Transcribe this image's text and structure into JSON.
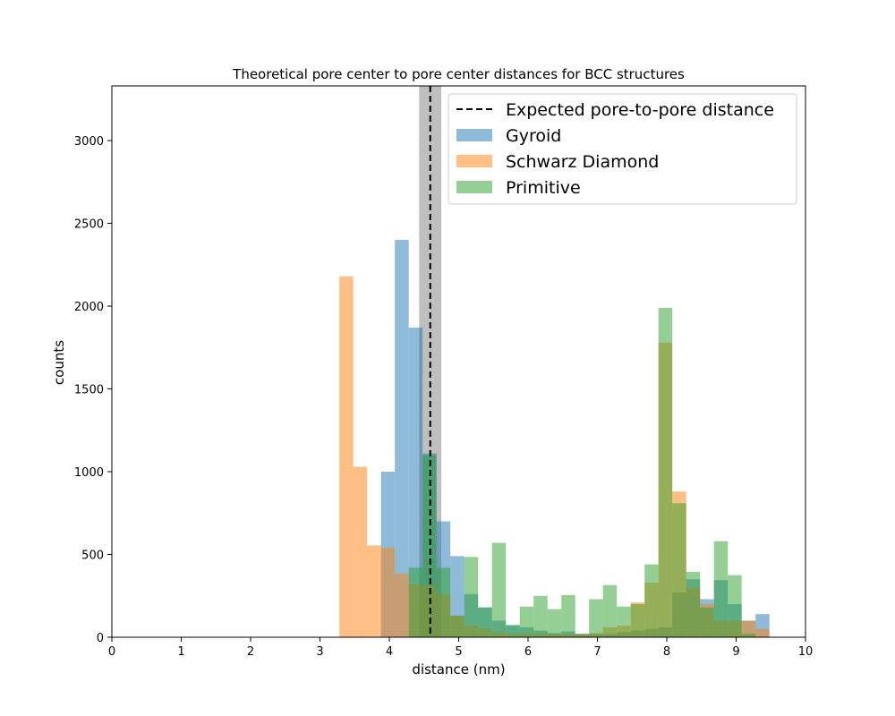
{
  "chart_data": {
    "type": "bar",
    "title": "Theoretical pore center to pore center distances for BCC structures",
    "xlabel": "distance (nm)",
    "ylabel": "counts",
    "xlim": [
      0,
      10
    ],
    "ylim": [
      0,
      3330
    ],
    "xticks": [
      "0",
      "1",
      "2",
      "3",
      "4",
      "5",
      "6",
      "7",
      "8",
      "9",
      "10"
    ],
    "yticks": [
      "0",
      "500",
      "1000",
      "1500",
      "2000",
      "2500",
      "3000"
    ],
    "grid": false,
    "legend_position": "upper right",
    "reference": {
      "label": "Expected pore-to-pore distance",
      "x": 4.59,
      "band": [
        4.43,
        4.75
      ],
      "line_color": "#000000",
      "band_color": "#808080"
    },
    "series": [
      {
        "name": "Gyroid",
        "color": "#1f77b4",
        "bins": [
          [
            3.88,
            4.08,
            1000
          ],
          [
            4.08,
            4.28,
            2400
          ],
          [
            4.28,
            4.48,
            1870
          ],
          [
            4.48,
            4.68,
            1110
          ],
          [
            4.68,
            4.88,
            700
          ],
          [
            4.88,
            5.08,
            490
          ],
          [
            5.08,
            5.28,
            260
          ],
          [
            5.28,
            5.48,
            180
          ],
          [
            5.48,
            5.68,
            100
          ],
          [
            5.68,
            5.88,
            70
          ],
          [
            5.88,
            6.08,
            60
          ],
          [
            6.08,
            6.28,
            40
          ],
          [
            6.28,
            6.48,
            25
          ],
          [
            6.48,
            6.68,
            35
          ],
          [
            6.68,
            6.88,
            20
          ],
          [
            6.88,
            7.08,
            20
          ],
          [
            7.08,
            7.28,
            20
          ],
          [
            7.28,
            7.48,
            30
          ],
          [
            7.48,
            7.68,
            40
          ],
          [
            7.68,
            7.88,
            50
          ],
          [
            7.88,
            8.08,
            60
          ],
          [
            8.08,
            8.28,
            270
          ],
          [
            8.28,
            8.48,
            350
          ],
          [
            8.48,
            8.68,
            230
          ],
          [
            8.68,
            8.88,
            345
          ],
          [
            8.88,
            9.08,
            200
          ],
          [
            9.08,
            9.28,
            100
          ],
          [
            9.28,
            9.48,
            140
          ]
        ]
      },
      {
        "name": "Schwarz Diamond",
        "color": "#ff7f0e",
        "bins": [
          [
            3.28,
            3.48,
            2180
          ],
          [
            3.48,
            3.68,
            1030
          ],
          [
            3.68,
            3.88,
            555
          ],
          [
            3.88,
            4.08,
            540
          ],
          [
            4.08,
            4.28,
            385
          ],
          [
            4.28,
            4.48,
            320
          ],
          [
            4.48,
            4.68,
            310
          ],
          [
            4.68,
            4.88,
            260
          ],
          [
            4.88,
            5.08,
            130
          ],
          [
            5.08,
            5.28,
            70
          ],
          [
            5.28,
            5.48,
            50
          ],
          [
            5.48,
            5.68,
            30
          ],
          [
            5.68,
            5.88,
            20
          ],
          [
            5.88,
            6.08,
            20
          ],
          [
            6.08,
            6.28,
            20
          ],
          [
            6.28,
            6.48,
            20
          ],
          [
            6.48,
            6.68,
            20
          ],
          [
            6.68,
            6.88,
            20
          ],
          [
            6.88,
            7.08,
            25
          ],
          [
            7.08,
            7.28,
            60
          ],
          [
            7.28,
            7.48,
            70
          ],
          [
            7.48,
            7.68,
            210
          ],
          [
            7.68,
            7.88,
            330
          ],
          [
            7.88,
            8.08,
            1780
          ],
          [
            8.08,
            8.28,
            880
          ],
          [
            8.28,
            8.48,
            300
          ],
          [
            8.48,
            8.68,
            200
          ],
          [
            8.68,
            8.88,
            100
          ],
          [
            8.88,
            9.08,
            100
          ],
          [
            9.08,
            9.28,
            100
          ],
          [
            9.28,
            9.48,
            50
          ]
        ]
      },
      {
        "name": "Primitive",
        "color": "#2ca02c",
        "bins": [
          [
            4.28,
            4.48,
            420
          ],
          [
            4.48,
            4.68,
            1100
          ],
          [
            4.68,
            4.88,
            420
          ],
          [
            4.88,
            5.08,
            130
          ],
          [
            5.08,
            5.28,
            485
          ],
          [
            5.28,
            5.48,
            180
          ],
          [
            5.48,
            5.68,
            570
          ],
          [
            5.68,
            5.88,
            75
          ],
          [
            5.88,
            6.08,
            185
          ],
          [
            6.08,
            6.28,
            250
          ],
          [
            6.28,
            6.48,
            170
          ],
          [
            6.48,
            6.68,
            255
          ],
          [
            6.68,
            6.88,
            20
          ],
          [
            6.88,
            7.08,
            230
          ],
          [
            7.08,
            7.28,
            315
          ],
          [
            7.28,
            7.48,
            185
          ],
          [
            7.48,
            7.68,
            200
          ],
          [
            7.68,
            7.88,
            440
          ],
          [
            7.88,
            8.08,
            1990
          ],
          [
            8.08,
            8.28,
            810
          ],
          [
            8.28,
            8.48,
            395
          ],
          [
            8.48,
            8.68,
            180
          ],
          [
            8.68,
            8.88,
            580
          ],
          [
            8.88,
            9.08,
            375
          ],
          [
            9.08,
            9.28,
            20
          ]
        ]
      }
    ]
  }
}
